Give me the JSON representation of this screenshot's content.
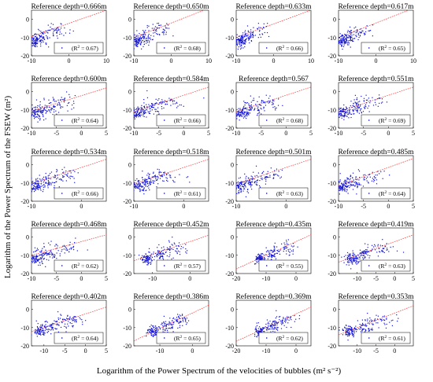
{
  "figure": {
    "xlabel": "Logarithm of the Power Spectrum of the velocities of bubbles (m² s⁻²)",
    "ylabel": "Logarithm of the Power Spectrum of the FSEW (m²)",
    "marker_color": "#1515d6",
    "fit_color": "#ff2a2a"
  },
  "chart_data": [
    {
      "type": "scatter",
      "title": "Reference depth=0.666m",
      "r2": "0.67",
      "xlim": [
        -10,
        10
      ],
      "ylim": [
        -20,
        5
      ],
      "xticks": [
        -10,
        0,
        10
      ],
      "yticks": [
        -20,
        -10,
        0
      ],
      "fit": {
        "slope": 0.72,
        "intercept": -2.2
      },
      "cluster": [
        -9.2,
        -12.2,
        -7.5,
        -10.2,
        -4,
        -6.5,
        1.5,
        -3
      ]
    },
    {
      "type": "scatter",
      "title": "Reference depth=0.650m",
      "r2": "0.68",
      "xlim": [
        -10,
        10
      ],
      "ylim": [
        -20,
        5
      ],
      "xticks": [
        -10,
        0,
        10
      ],
      "yticks": [
        -20,
        -10,
        0
      ],
      "fit": {
        "slope": 0.8,
        "intercept": -2.0
      },
      "cluster": [
        -9.2,
        -12.2,
        -7.5,
        -10.2,
        -4,
        -6.5,
        1.5,
        -3
      ]
    },
    {
      "type": "scatter",
      "title": "Reference depth=0.633m",
      "r2": "0.66",
      "xlim": [
        -10,
        10
      ],
      "ylim": [
        -20,
        5
      ],
      "xticks": [
        -10,
        0,
        10
      ],
      "yticks": [
        -20,
        -10,
        0
      ],
      "fit": {
        "slope": 0.75,
        "intercept": -2.5
      },
      "cluster": [
        -9.2,
        -12.2,
        -7.5,
        -10.2,
        -4,
        -6.5,
        1.5,
        -3
      ]
    },
    {
      "type": "scatter",
      "title": "Reference depth=0.617m",
      "r2": "0.65",
      "xlim": [
        -10,
        10
      ],
      "ylim": [
        -20,
        5
      ],
      "xticks": [
        -10,
        0,
        10
      ],
      "yticks": [
        -20,
        -10,
        0
      ],
      "fit": {
        "slope": 0.8,
        "intercept": -2.0
      },
      "cluster": [
        -9.2,
        -12.2,
        -7.5,
        -10.2,
        -4,
        -6.5,
        1.5,
        -3
      ]
    },
    {
      "type": "scatter",
      "title": "Reference depth=0.600m",
      "r2": "0.64",
      "xlim": [
        -10,
        5
      ],
      "ylim": [
        -20,
        5
      ],
      "xticks": [
        -10,
        -5,
        0,
        5
      ],
      "yticks": [
        -20,
        -10,
        0
      ],
      "fit": {
        "slope": 0.85,
        "intercept": -2.2
      },
      "cluster": [
        -9.2,
        -12,
        -7,
        -9.5,
        -4,
        -6,
        0,
        -3
      ]
    },
    {
      "type": "scatter",
      "title": "Reference depth=0.584m",
      "r2": "0.66",
      "xlim": [
        -10,
        5
      ],
      "ylim": [
        -20,
        5
      ],
      "xticks": [
        -10,
        -5,
        0,
        5
      ],
      "yticks": [
        -20,
        -10,
        0
      ],
      "fit": {
        "slope": 0.9,
        "intercept": -2.0
      },
      "cluster": [
        -9.2,
        -12,
        -7,
        -9.5,
        -4,
        -6,
        0,
        -3
      ]
    },
    {
      "type": "scatter",
      "title": "Reference depth=0.567",
      "r2": "0.68",
      "xlim": [
        -10,
        5
      ],
      "ylim": [
        -20,
        5
      ],
      "xticks": [
        -10,
        -5,
        0,
        5
      ],
      "yticks": [
        -20,
        -10,
        0
      ],
      "fit": {
        "slope": 0.9,
        "intercept": -2.0
      },
      "cluster": [
        -9.2,
        -12,
        -7,
        -9.5,
        -4,
        -6,
        0,
        -3
      ]
    },
    {
      "type": "scatter",
      "title": "Reference depth=0.551m",
      "r2": "0.69",
      "xlim": [
        -10,
        5
      ],
      "ylim": [
        -20,
        5
      ],
      "xticks": [
        -10,
        -5,
        0,
        5
      ],
      "yticks": [
        -20,
        -10,
        0
      ],
      "fit": {
        "slope": 0.9,
        "intercept": -2.0
      },
      "cluster": [
        -9.2,
        -12,
        -7,
        -9.5,
        -4,
        -6,
        0,
        -3
      ]
    },
    {
      "type": "scatter",
      "title": "Reference depth=0.534m",
      "r2": "0.66",
      "xlim": [
        -10,
        5
      ],
      "ylim": [
        -20,
        5
      ],
      "xticks": [
        -10,
        0
      ],
      "yticks": [
        -20,
        -10,
        0
      ],
      "fit": {
        "slope": 0.9,
        "intercept": -1.5
      },
      "cluster": [
        -9.2,
        -12,
        -7,
        -9.5,
        -4,
        -6,
        0,
        -3
      ]
    },
    {
      "type": "scatter",
      "title": "Reference depth=0.518m",
      "r2": "0.61",
      "xlim": [
        -10,
        5
      ],
      "ylim": [
        -20,
        5
      ],
      "xticks": [
        -10,
        0
      ],
      "yticks": [
        -20,
        -10,
        0
      ],
      "fit": {
        "slope": 0.9,
        "intercept": -1.5
      },
      "cluster": [
        -9.2,
        -12,
        -7,
        -9.5,
        -4,
        -6,
        0,
        -3
      ]
    },
    {
      "type": "scatter",
      "title": "Reference depth=0.501m",
      "r2": "0.63",
      "xlim": [
        -10,
        5
      ],
      "ylim": [
        -20,
        5
      ],
      "xticks": [
        -10,
        0
      ],
      "yticks": [
        -20,
        -10,
        0
      ],
      "fit": {
        "slope": 0.9,
        "intercept": -1.5
      },
      "cluster": [
        -9.2,
        -12,
        -7,
        -9.5,
        -4,
        -6,
        0,
        -3
      ]
    },
    {
      "type": "scatter",
      "title": "Reference depth=0.485m",
      "r2": "0.64",
      "xlim": [
        -10,
        5
      ],
      "ylim": [
        -20,
        5
      ],
      "xticks": [
        -10,
        -5,
        0,
        5
      ],
      "yticks": [
        -20,
        -10,
        0
      ],
      "fit": {
        "slope": 1.0,
        "intercept": -1.5
      },
      "cluster": [
        -9.2,
        -12,
        -7,
        -9.5,
        -4,
        -6,
        0,
        -3
      ]
    },
    {
      "type": "scatter",
      "title": "Reference depth=0.468m",
      "r2": "0.62",
      "xlim": [
        -10,
        5
      ],
      "ylim": [
        -20,
        5
      ],
      "xticks": [
        -10,
        -5,
        0,
        5
      ],
      "yticks": [
        -20,
        -10,
        0
      ],
      "fit": {
        "slope": 0.75,
        "intercept": -2.5
      },
      "cluster": [
        -9.2,
        -12,
        -7,
        -9.5,
        -4,
        -6,
        0,
        -3
      ]
    },
    {
      "type": "scatter",
      "title": "Reference depth=0.452m",
      "r2": "0.57",
      "xlim": [
        -15,
        5
      ],
      "ylim": [
        -20,
        5
      ],
      "xticks": [
        -10,
        0
      ],
      "yticks": [
        -20,
        -10,
        0
      ],
      "fit": {
        "slope": 0.7,
        "intercept": -2.5
      },
      "cluster": [
        -11.5,
        -12,
        -8,
        -9.5,
        -4,
        -6,
        0,
        -3
      ]
    },
    {
      "type": "scatter",
      "title": "Reference depth=0.435m",
      "r2": "0.55",
      "xlim": [
        -20,
        5
      ],
      "ylim": [
        -20,
        5
      ],
      "xticks": [
        -20,
        -10,
        0
      ],
      "yticks": [
        -20,
        -10,
        0
      ],
      "fit": {
        "slope": 0.75,
        "intercept": -2.5
      },
      "cluster": [
        -12,
        -12,
        -8,
        -9.5,
        -4,
        -6,
        0,
        -3
      ]
    },
    {
      "type": "scatter",
      "title": "Reference depth=0.419m",
      "r2": "0.63",
      "xlim": [
        -15,
        5
      ],
      "ylim": [
        -20,
        5
      ],
      "xticks": [
        -10,
        -5,
        0,
        5
      ],
      "yticks": [
        -20,
        -10,
        0
      ],
      "fit": {
        "slope": 0.75,
        "intercept": -2.5
      },
      "cluster": [
        -11.5,
        -12,
        -8,
        -9.5,
        -4,
        -6,
        0,
        -3
      ]
    },
    {
      "type": "scatter",
      "title": "Reference depth=0.402m",
      "r2": "0.64",
      "xlim": [
        -13,
        5
      ],
      "ylim": [
        -20,
        5
      ],
      "xticks": [
        -10,
        -5,
        0,
        5
      ],
      "yticks": [
        -20,
        -10,
        0
      ],
      "fit": {
        "slope": 0.75,
        "intercept": -2.5
      },
      "cluster": [
        -11,
        -12,
        -8,
        -9.5,
        -4,
        -6,
        0,
        -3
      ]
    },
    {
      "type": "scatter",
      "title": "Reference depth=0.386m",
      "r2": "0.65",
      "xlim": [
        -18,
        5
      ],
      "ylim": [
        -20,
        5
      ],
      "xticks": [
        -10,
        0
      ],
      "yticks": [
        -20,
        -10,
        0
      ],
      "fit": {
        "slope": 0.85,
        "intercept": -2.0
      },
      "cluster": [
        -12,
        -12,
        -8,
        -9.5,
        -4,
        -6,
        0,
        -3
      ]
    },
    {
      "type": "scatter",
      "title": "Reference depth=0.369m",
      "r2": "0.62",
      "xlim": [
        -20,
        5
      ],
      "ylim": [
        -20,
        5
      ],
      "xticks": [
        -20,
        -10,
        0
      ],
      "yticks": [
        -20,
        -10,
        0
      ],
      "fit": {
        "slope": 0.75,
        "intercept": -2.5
      },
      "cluster": [
        -12,
        -12,
        -8,
        -9.5,
        -4,
        -6,
        0,
        -3
      ]
    },
    {
      "type": "scatter",
      "title": "Reference depth=0.353m",
      "r2": "0.61",
      "xlim": [
        -15,
        5
      ],
      "ylim": [
        -20,
        5
      ],
      "xticks": [
        -10,
        -5,
        0
      ],
      "yticks": [
        -20,
        -10,
        0
      ],
      "fit": {
        "slope": 0.8,
        "intercept": -2.0
      },
      "cluster": [
        -12,
        -12,
        -8,
        -9.5,
        -4,
        -6,
        0,
        -3
      ]
    }
  ]
}
